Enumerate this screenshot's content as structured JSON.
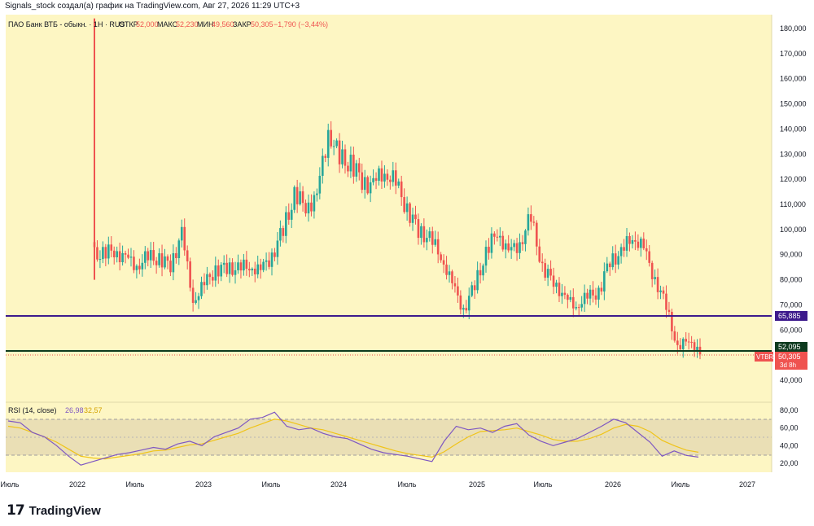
{
  "header": {
    "credit": "Signals_stock создал(а) график на TradingView.com, Авг 27, 2026 11:29 UTC+3"
  },
  "legend": {
    "symbol": "ПАО Банк ВТБ - обыкн. · 1Н · RUS",
    "open_label": "ОТКР",
    "open_value": "52,000",
    "high_label": "МАКС",
    "high_value": "52,230",
    "low_label": "МИН",
    "low_value": "49,560",
    "close_label": "ЗАКР",
    "close_value": "50,305",
    "change": "−1,790 (−3,44%)"
  },
  "rsi_legend": {
    "label": "RSI (14, close)",
    "rsi_value": "26,98",
    "ma_value": "32,57"
  },
  "price_labels": {
    "level_top": "65,885",
    "level_bottom": "52,095",
    "ticker": "VTBR",
    "last_price": "50,305",
    "countdown": "3d 8h"
  },
  "brand": {
    "logo": "17",
    "name": "TradingView"
  },
  "colors": {
    "background": "#fdf6c3",
    "up": "#26a69a",
    "down": "#ef5350",
    "level_top": "#3d1a8c",
    "level_bottom": "#0e3b1f",
    "rsi": "#7e57c2",
    "rsi_ma": "#f0c419"
  },
  "chart_data": [
    {
      "type": "candlestick",
      "title": "ПАО Банк ВТБ - обыкн. · 1Н · RUS",
      "timeframe": "1W",
      "y_axis_ticks": [
        "180,000",
        "170,000",
        "160,000",
        "150,000",
        "140,000",
        "130,000",
        "120,000",
        "110,000",
        "100,000",
        "90,000",
        "80,000",
        "70,000",
        "60,000",
        "50,000",
        "40,000"
      ],
      "x_axis_ticks": [
        "Июль",
        "2022",
        "Июль",
        "2023",
        "Июль",
        "2024",
        "Июль",
        "2025",
        "Июль",
        "2026",
        "Июль",
        "2027"
      ],
      "ylim": [
        33,
        184
      ],
      "horizontal_levels": [
        65.885,
        52.095
      ],
      "last_close": 50.305,
      "series": [
        {
          "x": "2022-03",
          "close": 90
        },
        {
          "x": "2022-04",
          "close": 92
        },
        {
          "x": "2022-05",
          "close": 88
        },
        {
          "x": "2022-06",
          "close": 86
        },
        {
          "x": "2022-07",
          "close": 89
        },
        {
          "x": "2022-08",
          "close": 88
        },
        {
          "x": "2022-09",
          "close": 86
        },
        {
          "x": "2022-10",
          "close": 98
        },
        {
          "x": "2022-11",
          "close": 72
        },
        {
          "x": "2022-12",
          "close": 78
        },
        {
          "x": "2023-01",
          "close": 84
        },
        {
          "x": "2023-02",
          "close": 85
        },
        {
          "x": "2023-03",
          "close": 84
        },
        {
          "x": "2023-04",
          "close": 86
        },
        {
          "x": "2023-05",
          "close": 83
        },
        {
          "x": "2023-06",
          "close": 90
        },
        {
          "x": "2023-07",
          "close": 100
        },
        {
          "x": "2023-08",
          "close": 113
        },
        {
          "x": "2023-09",
          "close": 110
        },
        {
          "x": "2023-10",
          "close": 112
        },
        {
          "x": "2023-11",
          "close": 140
        },
        {
          "x": "2023-12",
          "close": 128
        },
        {
          "x": "2024-01",
          "close": 126
        },
        {
          "x": "2024-02",
          "close": 120
        },
        {
          "x": "2024-03",
          "close": 117
        },
        {
          "x": "2024-04",
          "close": 124
        },
        {
          "x": "2024-05",
          "close": 118
        },
        {
          "x": "2024-06",
          "close": 108
        },
        {
          "x": "2024-07",
          "close": 100
        },
        {
          "x": "2024-08",
          "close": 96
        },
        {
          "x": "2024-09",
          "close": 90
        },
        {
          "x": "2024-10",
          "close": 78
        },
        {
          "x": "2024-11",
          "close": 68
        },
        {
          "x": "2024-12",
          "close": 78
        },
        {
          "x": "2025-01",
          "close": 90
        },
        {
          "x": "2025-02",
          "close": 100
        },
        {
          "x": "2025-03",
          "close": 90
        },
        {
          "x": "2025-04",
          "close": 95
        },
        {
          "x": "2025-05",
          "close": 105
        },
        {
          "x": "2025-06",
          "close": 84
        },
        {
          "x": "2025-07",
          "close": 80
        },
        {
          "x": "2025-08",
          "close": 72
        },
        {
          "x": "2025-09",
          "close": 70
        },
        {
          "x": "2025-10",
          "close": 73
        },
        {
          "x": "2025-11",
          "close": 75
        },
        {
          "x": "2025-12",
          "close": 88
        },
        {
          "x": "2026-01",
          "close": 90
        },
        {
          "x": "2026-02",
          "close": 98
        },
        {
          "x": "2026-03",
          "close": 92
        },
        {
          "x": "2026-04",
          "close": 80
        },
        {
          "x": "2026-05",
          "close": 70
        },
        {
          "x": "2026-06",
          "close": 52
        },
        {
          "x": "2026-07",
          "close": 57
        },
        {
          "x": "2026-08",
          "close": 50.3
        }
      ]
    },
    {
      "type": "line",
      "title": "RSI (14, close)",
      "y_axis_ticks": [
        "80,00",
        "60,00",
        "40,00",
        "20,00"
      ],
      "ylim": [
        10,
        90
      ],
      "bands": [
        70,
        50,
        30
      ],
      "series": [
        {
          "name": "RSI",
          "values": [
            68,
            66,
            55,
            50,
            40,
            28,
            18,
            22,
            26,
            30,
            32,
            35,
            38,
            36,
            42,
            45,
            40,
            50,
            55,
            60,
            70,
            72,
            78,
            62,
            58,
            60,
            54,
            50,
            48,
            42,
            36,
            32,
            30,
            28,
            25,
            22,
            45,
            62,
            58,
            60,
            55,
            62,
            65,
            52,
            45,
            40,
            44,
            48,
            55,
            62,
            70,
            66,
            55,
            44,
            28,
            34,
            29,
            27
          ]
        },
        {
          "name": "MA",
          "values": [
            62,
            60,
            55,
            50,
            44,
            36,
            28,
            26,
            25,
            27,
            29,
            31,
            34,
            35,
            38,
            41,
            42,
            46,
            50,
            54,
            60,
            65,
            70,
            68,
            64,
            60,
            58,
            54,
            50,
            46,
            42,
            38,
            34,
            31,
            29,
            27,
            33,
            42,
            50,
            56,
            57,
            58,
            60,
            56,
            52,
            47,
            45,
            45,
            48,
            53,
            60,
            64,
            62,
            56,
            46,
            40,
            35,
            32.57
          ]
        }
      ]
    }
  ]
}
